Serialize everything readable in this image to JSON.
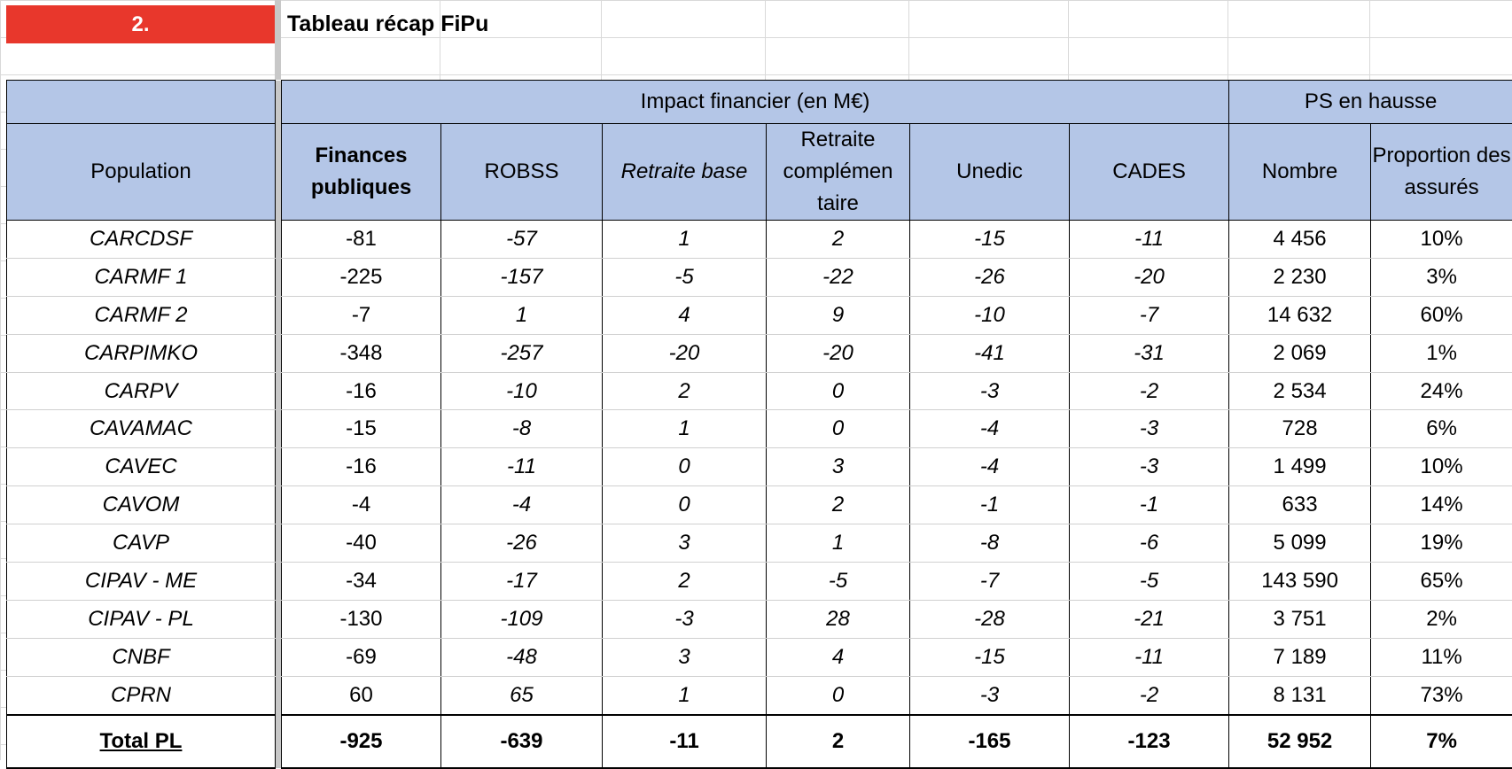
{
  "section_number": "2.",
  "sheet_title": "Tableau récap FiPu",
  "table": {
    "group_headers": {
      "impact": "Impact financier (en M€)",
      "ps": "PS en hausse"
    },
    "column_headers": {
      "population": "Population",
      "finances_publiques": "Finances publiques",
      "robss": "ROBSS",
      "retraite_base": "Retraite base",
      "retraite_complementaire": "Retraite complémen taire",
      "unedic": "Unedic",
      "cades": "CADES",
      "nombre": "Nombre",
      "proportion": "Proportion des assurés"
    },
    "rows": [
      {
        "population": "CARCDSF",
        "finances_publiques": "-81",
        "robss": "-57",
        "retraite_base": "1",
        "retraite_complementaire": "2",
        "unedic": "-15",
        "cades": "-11",
        "nombre": "4 456",
        "proportion": "10%"
      },
      {
        "population": "CARMF 1",
        "finances_publiques": "-225",
        "robss": "-157",
        "retraite_base": "-5",
        "retraite_complementaire": "-22",
        "unedic": "-26",
        "cades": "-20",
        "nombre": "2 230",
        "proportion": "3%"
      },
      {
        "population": "CARMF 2",
        "finances_publiques": "-7",
        "robss": "1",
        "retraite_base": "4",
        "retraite_complementaire": "9",
        "unedic": "-10",
        "cades": "-7",
        "nombre": "14 632",
        "proportion": "60%"
      },
      {
        "population": "CARPIMKO",
        "finances_publiques": "-348",
        "robss": "-257",
        "retraite_base": "-20",
        "retraite_complementaire": "-20",
        "unedic": "-41",
        "cades": "-31",
        "nombre": "2 069",
        "proportion": "1%"
      },
      {
        "population": "CARPV",
        "finances_publiques": "-16",
        "robss": "-10",
        "retraite_base": "2",
        "retraite_complementaire": "0",
        "unedic": "-3",
        "cades": "-2",
        "nombre": "2 534",
        "proportion": "24%"
      },
      {
        "population": "CAVAMAC",
        "finances_publiques": "-15",
        "robss": "-8",
        "retraite_base": "1",
        "retraite_complementaire": "0",
        "unedic": "-4",
        "cades": "-3",
        "nombre": "728",
        "proportion": "6%"
      },
      {
        "population": "CAVEC",
        "finances_publiques": "-16",
        "robss": "-11",
        "retraite_base": "0",
        "retraite_complementaire": "3",
        "unedic": "-4",
        "cades": "-3",
        "nombre": "1 499",
        "proportion": "10%"
      },
      {
        "population": "CAVOM",
        "finances_publiques": "-4",
        "robss": "-4",
        "retraite_base": "0",
        "retraite_complementaire": "2",
        "unedic": "-1",
        "cades": "-1",
        "nombre": "633",
        "proportion": "14%"
      },
      {
        "population": "CAVP",
        "finances_publiques": "-40",
        "robss": "-26",
        "retraite_base": "3",
        "retraite_complementaire": "1",
        "unedic": "-8",
        "cades": "-6",
        "nombre": "5 099",
        "proportion": "19%"
      },
      {
        "population": "CIPAV - ME",
        "finances_publiques": "-34",
        "robss": "-17",
        "retraite_base": "2",
        "retraite_complementaire": "-5",
        "unedic": "-7",
        "cades": "-5",
        "nombre": "143 590",
        "proportion": "65%"
      },
      {
        "population": "CIPAV - PL",
        "finances_publiques": "-130",
        "robss": "-109",
        "retraite_base": "-3",
        "retraite_complementaire": "28",
        "unedic": "-28",
        "cades": "-21",
        "nombre": "3 751",
        "proportion": "2%"
      },
      {
        "population": "CNBF",
        "finances_publiques": "-69",
        "robss": "-48",
        "retraite_base": "3",
        "retraite_complementaire": "4",
        "unedic": "-15",
        "cades": "-11",
        "nombre": "7 189",
        "proportion": "11%"
      },
      {
        "population": "CPRN",
        "finances_publiques": "60",
        "robss": "65",
        "retraite_base": "1",
        "retraite_complementaire": "0",
        "unedic": "-3",
        "cades": "-2",
        "nombre": "8 131",
        "proportion": "73%"
      }
    ],
    "total": {
      "population": "Total PL",
      "finances_publiques": "-925",
      "robss": "-639",
      "retraite_base": "-11",
      "retraite_complementaire": "2",
      "unedic": "-165",
      "cades": "-123",
      "nombre": "52 952",
      "proportion": "7%"
    }
  },
  "colors": {
    "section_red": "#e8372c",
    "header_blue": "#b4c6e7",
    "frozen_pane": "#c8c8c8"
  }
}
